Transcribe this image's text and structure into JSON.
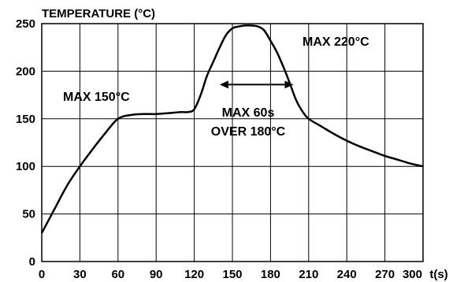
{
  "chart_data": {
    "type": "line",
    "ylabel": "TEMPERATURE (°C)",
    "xlabel": "t(s)",
    "xlim": [
      0,
      300
    ],
    "ylim": [
      0,
      250
    ],
    "x_ticks": [
      "0",
      "30",
      "60",
      "90",
      "120",
      "150",
      "180",
      "210",
      "240",
      "270",
      "300"
    ],
    "y_ticks": [
      "0",
      "50",
      "100",
      "150",
      "200",
      "250"
    ],
    "grid": true,
    "series": [
      {
        "points": [
          [
            0,
            30
          ],
          [
            10,
            55
          ],
          [
            20,
            80
          ],
          [
            30,
            100
          ],
          [
            40,
            118
          ],
          [
            50,
            135
          ],
          [
            60,
            150
          ],
          [
            70,
            154
          ],
          [
            80,
            155
          ],
          [
            90,
            155
          ],
          [
            100,
            156
          ],
          [
            110,
            157
          ],
          [
            115,
            157
          ],
          [
            120,
            160
          ],
          [
            125,
            175
          ],
          [
            130,
            195
          ],
          [
            135,
            210
          ],
          [
            140,
            225
          ],
          [
            145,
            238
          ],
          [
            150,
            245
          ],
          [
            155,
            247
          ],
          [
            160,
            248
          ],
          [
            165,
            248
          ],
          [
            170,
            247
          ],
          [
            175,
            243
          ],
          [
            180,
            232
          ],
          [
            185,
            220
          ],
          [
            190,
            205
          ],
          [
            195,
            188
          ],
          [
            200,
            170
          ],
          [
            205,
            158
          ],
          [
            210,
            150
          ],
          [
            220,
            142
          ],
          [
            230,
            134
          ],
          [
            240,
            127
          ],
          [
            250,
            121
          ],
          [
            260,
            116
          ],
          [
            270,
            111
          ],
          [
            280,
            107
          ],
          [
            290,
            103
          ],
          [
            300,
            100
          ]
        ]
      }
    ],
    "annotations": {
      "max150": "MAX 150°C",
      "max220": "MAX 220°C",
      "max60_line1": "MAX 60s",
      "max60_line2": "OVER 180°C"
    },
    "arrow_span": [
      140,
      198
    ],
    "arrow_y": 200
  }
}
